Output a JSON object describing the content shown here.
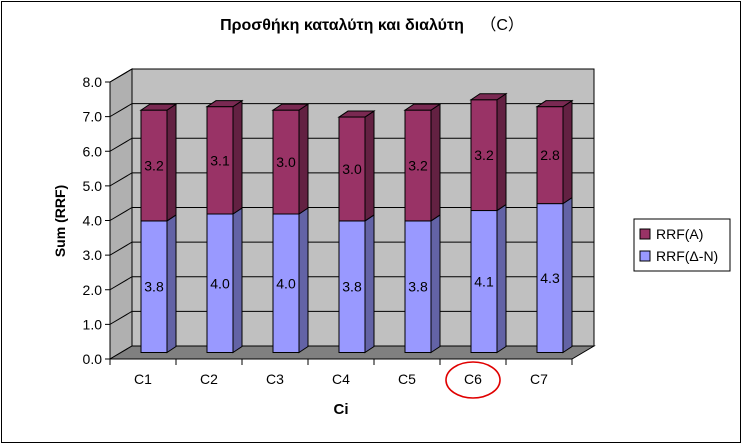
{
  "chart_data": {
    "type": "bar",
    "stacked": true,
    "style": "3d",
    "title": "Προσθήκη καταλύτη και διαλύτη",
    "title_suffix": "（C）",
    "xlabel": "Ci",
    "ylabel": "Sum (RRF)",
    "categories": [
      "C1",
      "C2",
      "C3",
      "C4",
      "C5",
      "C6",
      "C7"
    ],
    "series": [
      {
        "name": "RRF(Δ-N)",
        "values": [
          3.8,
          4.0,
          4.0,
          3.8,
          3.8,
          4.1,
          4.3
        ],
        "color": "#9999ff",
        "labels": [
          "3.8",
          "4.0",
          "4.0",
          "3.8",
          "3.8",
          "4.1",
          "4.3"
        ]
      },
      {
        "name": "RRF(A)",
        "values": [
          3.2,
          3.1,
          3.0,
          3.0,
          3.2,
          3.2,
          2.8
        ],
        "color": "#993366",
        "labels": [
          "3.2",
          "3.1",
          "3.0",
          "3.0",
          "3.2",
          "3.2",
          "2.8"
        ]
      }
    ],
    "legend_order": [
      "RRF(A)",
      "RRF(Δ-N)"
    ],
    "ylim": [
      0,
      8
    ],
    "yticks": [
      "0.0",
      "1.0",
      "2.0",
      "3.0",
      "4.0",
      "5.0",
      "6.0",
      "7.0",
      "8.0"
    ],
    "grid": true,
    "wall_color": "#c0c0c0",
    "floor_color": "#808080",
    "legend_position": "right",
    "highlight": {
      "category": "C6",
      "shape": "ellipse",
      "color": "#e00000"
    }
  }
}
